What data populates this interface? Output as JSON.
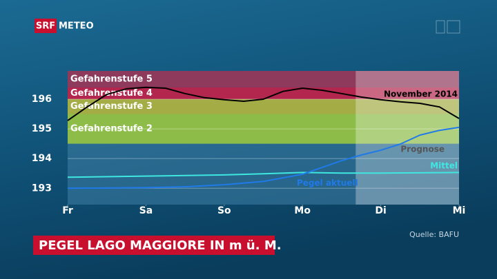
{
  "header": {
    "logo": "SRF",
    "brand": "METEO"
  },
  "chart_data": {
    "type": "line",
    "title": "PEGEL LAGO MAGGIORE IN m ü. M.",
    "source": "Quelle: BAFU",
    "xlim": [
      0,
      5
    ],
    "xticks": [
      {
        "value": 0,
        "label": "Fr"
      },
      {
        "value": 1,
        "label": "Sa"
      },
      {
        "value": 2,
        "label": "So"
      },
      {
        "value": 3,
        "label": "Mo"
      },
      {
        "value": 4,
        "label": "Di"
      },
      {
        "value": 5,
        "label": "Mi"
      }
    ],
    "ylim": [
      192.45,
      196.95
    ],
    "yticks": [
      193,
      194,
      195,
      196
    ],
    "grid": true,
    "bands": [
      {
        "name": "Gefahrenstufe 5",
        "from": 196.4,
        "to": 196.95,
        "color": "#8e3a5c"
      },
      {
        "name": "Gefahrenstufe 4",
        "from": 196.0,
        "to": 196.4,
        "color": "#b3264e"
      },
      {
        "name": "Gefahrenstufe 3",
        "from": 195.5,
        "to": 196.0,
        "color": "#a4ac45"
      },
      {
        "name": "Gefahrenstufe 2",
        "from": 194.5,
        "to": 195.5,
        "color": "#8dbd48"
      }
    ],
    "forecast": {
      "label": "Prognose",
      "from": 3.68,
      "to": 5
    },
    "series": [
      {
        "name": "November 2014",
        "color": "#000000",
        "x": [
          0,
          0.25,
          0.5,
          0.75,
          1,
          1.25,
          1.5,
          1.75,
          2,
          2.25,
          2.5,
          2.75,
          3,
          3.25,
          3.5,
          3.75,
          4,
          4.25,
          4.5,
          4.75,
          5
        ],
        "values": [
          195.28,
          195.74,
          196.16,
          196.35,
          196.4,
          196.37,
          196.19,
          196.05,
          195.98,
          195.93,
          196.0,
          196.26,
          196.37,
          196.3,
          196.19,
          196.07,
          195.98,
          195.91,
          195.86,
          195.74,
          195.35
        ]
      },
      {
        "name": "Mittel",
        "color": "#3ee8e0",
        "x": [
          0,
          1,
          2,
          2.5,
          3,
          3.5,
          4,
          5
        ],
        "values": [
          193.37,
          193.41,
          193.45,
          193.49,
          193.53,
          193.51,
          193.51,
          193.53
        ]
      },
      {
        "name": "Pegel aktuell",
        "color": "#1f7ae8",
        "x": [
          0,
          1,
          1.5,
          2,
          2.5,
          3,
          3.25,
          3.5,
          3.75,
          4,
          4.25,
          4.5,
          4.75,
          5
        ],
        "values": [
          193.0,
          193.02,
          193.05,
          193.12,
          193.23,
          193.47,
          193.7,
          193.93,
          194.12,
          194.28,
          194.49,
          194.79,
          194.95,
          195.05
        ]
      }
    ]
  }
}
